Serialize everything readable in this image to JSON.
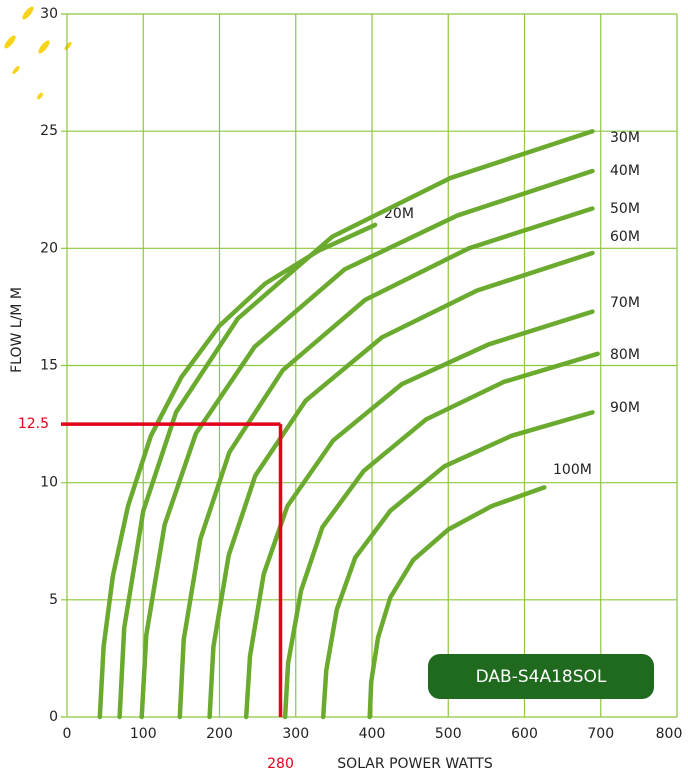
{
  "chart_data": {
    "type": "line",
    "x_label": "SOLAR POWER WATTS",
    "y_label": "FLOW L/M M",
    "badge": "DAB-S4A18SOL",
    "xlim": [
      0,
      800
    ],
    "xticks": [
      0,
      100,
      200,
      300,
      400,
      500,
      600,
      700,
      800
    ],
    "ylim": [
      0,
      30
    ],
    "yticks": [
      0,
      5,
      10,
      15,
      20,
      25,
      30
    ],
    "grid": true,
    "color": "#6aaa2e",
    "highlight": {
      "x": 280,
      "y": 12.5,
      "color": "#e3001b"
    },
    "series": [
      {
        "name": "20M",
        "x": [
          43,
          48,
          60,
          80,
          110,
          150,
          200,
          260,
          330,
          404
        ],
        "values": [
          0,
          3,
          6,
          9,
          12,
          14.5,
          16.7,
          18.5,
          19.9,
          21
        ]
      },
      {
        "name": "30M",
        "x": [
          69,
          75,
          100,
          143,
          224,
          348,
          503,
          689
        ],
        "values": [
          0,
          3.8,
          8.8,
          13,
          17,
          20.5,
          23,
          25
        ]
      },
      {
        "name": "40M",
        "x": [
          98,
          104,
          128,
          169,
          246,
          364,
          512,
          689
        ],
        "values": [
          0,
          3.5,
          8.2,
          12.1,
          15.8,
          19.1,
          21.4,
          23.3
        ]
      },
      {
        "name": "50M",
        "x": [
          148,
          153,
          175,
          213,
          283,
          391,
          527,
          689
        ],
        "values": [
          0,
          3.3,
          7.6,
          11.3,
          14.8,
          17.8,
          20,
          21.7
        ]
      },
      {
        "name": "60M",
        "x": [
          187,
          192,
          212,
          247,
          313,
          413,
          538,
          689
        ],
        "values": [
          0,
          3,
          6.9,
          10.3,
          13.5,
          16.2,
          18.2,
          19.8
        ]
      },
      {
        "name": "70M",
        "x": [
          235,
          240,
          258,
          289,
          349,
          439,
          553,
          689
        ],
        "values": [
          0,
          2.6,
          6.1,
          9,
          11.8,
          14.2,
          15.9,
          17.3
        ]
      },
      {
        "name": "80M",
        "x": [
          286,
          290,
          307,
          335,
          389,
          471,
          573,
          696
        ],
        "values": [
          0,
          2.3,
          5.4,
          8.1,
          10.5,
          12.7,
          14.3,
          15.5
        ]
      },
      {
        "name": "90M",
        "x": [
          336,
          340,
          354,
          378,
          424,
          495,
          583,
          689
        ],
        "values": [
          0,
          2,
          4.6,
          6.8,
          8.8,
          10.7,
          12,
          13
        ]
      },
      {
        "name": "100M",
        "x": [
          397,
          399,
          408,
          424,
          454,
          500,
          557,
          626
        ],
        "values": [
          0,
          1.5,
          3.4,
          5.1,
          6.7,
          8,
          9,
          9.8
        ]
      }
    ]
  }
}
